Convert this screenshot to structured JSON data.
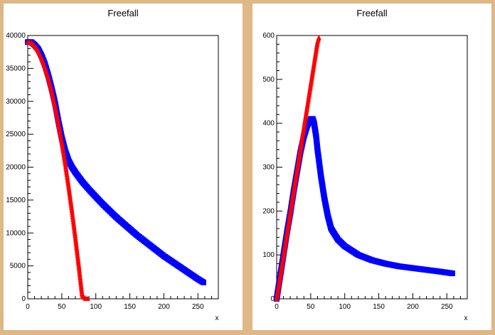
{
  "colors": {
    "background": "#DEB887",
    "series_blue": "#0000FF",
    "series_red": "#FF0000"
  },
  "chart_data": [
    {
      "type": "scatter",
      "title": "Freefall",
      "xlabel": "x",
      "ylabel": "",
      "xlim": [
        0,
        280
      ],
      "ylim": [
        0,
        40000
      ],
      "x_ticks": [
        0,
        50,
        100,
        150,
        200,
        250
      ],
      "y_ticks": [
        0,
        5000,
        10000,
        15000,
        20000,
        25000,
        30000,
        35000,
        40000
      ],
      "grid": false,
      "series": [
        {
          "color": "#0000FF",
          "marker": "square",
          "x": [
            0,
            5,
            10,
            15,
            20,
            25,
            30,
            35,
            40,
            45,
            50,
            55,
            60,
            65,
            70,
            80,
            90,
            100,
            110,
            120,
            130,
            140,
            150,
            160,
            170,
            180,
            190,
            200,
            210,
            220,
            230,
            240,
            250,
            258
          ],
          "y": [
            39000,
            39000,
            38600,
            38000,
            37000,
            35700,
            34000,
            32000,
            29800,
            27000,
            24500,
            22500,
            21000,
            20000,
            19200,
            17800,
            16600,
            15500,
            14400,
            13400,
            12400,
            11500,
            10600,
            9700,
            8900,
            8100,
            7300,
            6500,
            5800,
            5100,
            4400,
            3700,
            3000,
            2500
          ]
        },
        {
          "color": "#FF0000",
          "marker": "triangle",
          "x": [
            0,
            5,
            10,
            15,
            20,
            25,
            30,
            35,
            40,
            45,
            50,
            55,
            60,
            65,
            70,
            75,
            80,
            85,
            88
          ],
          "y": [
            39000,
            38900,
            38400,
            37700,
            36600,
            35200,
            33600,
            31600,
            29200,
            26600,
            23700,
            20600,
            17100,
            13300,
            9300,
            5000,
            500,
            0,
            0
          ]
        }
      ]
    },
    {
      "type": "scatter",
      "title": "Freefall",
      "xlabel": "x",
      "ylabel": "",
      "xlim": [
        0,
        280
      ],
      "ylim": [
        0,
        600
      ],
      "x_ticks": [
        0,
        50,
        100,
        150,
        200,
        250
      ],
      "y_ticks": [
        0,
        100,
        200,
        300,
        400,
        500,
        600
      ],
      "grid": false,
      "series": [
        {
          "color": "#0000FF",
          "marker": "square",
          "x": [
            0,
            5,
            10,
            15,
            20,
            25,
            30,
            35,
            40,
            45,
            50,
            53,
            55,
            58,
            60,
            65,
            70,
            75,
            80,
            90,
            100,
            120,
            140,
            160,
            180,
            200,
            220,
            240,
            258
          ],
          "y": [
            0,
            50,
            100,
            150,
            195,
            245,
            290,
            335,
            370,
            395,
            410,
            410,
            400,
            370,
            340,
            280,
            230,
            190,
            160,
            135,
            120,
            100,
            88,
            80,
            74,
            70,
            66,
            62,
            58
          ]
        },
        {
          "color": "#FF0000",
          "marker": "triangle",
          "x": [
            0,
            5,
            10,
            15,
            20,
            25,
            30,
            35,
            40,
            45,
            50,
            55,
            60,
            62
          ],
          "y": [
            0,
            48,
            97,
            146,
            195,
            244,
            292,
            341,
            390,
            438,
            487,
            536,
            585,
            595
          ]
        }
      ]
    }
  ]
}
